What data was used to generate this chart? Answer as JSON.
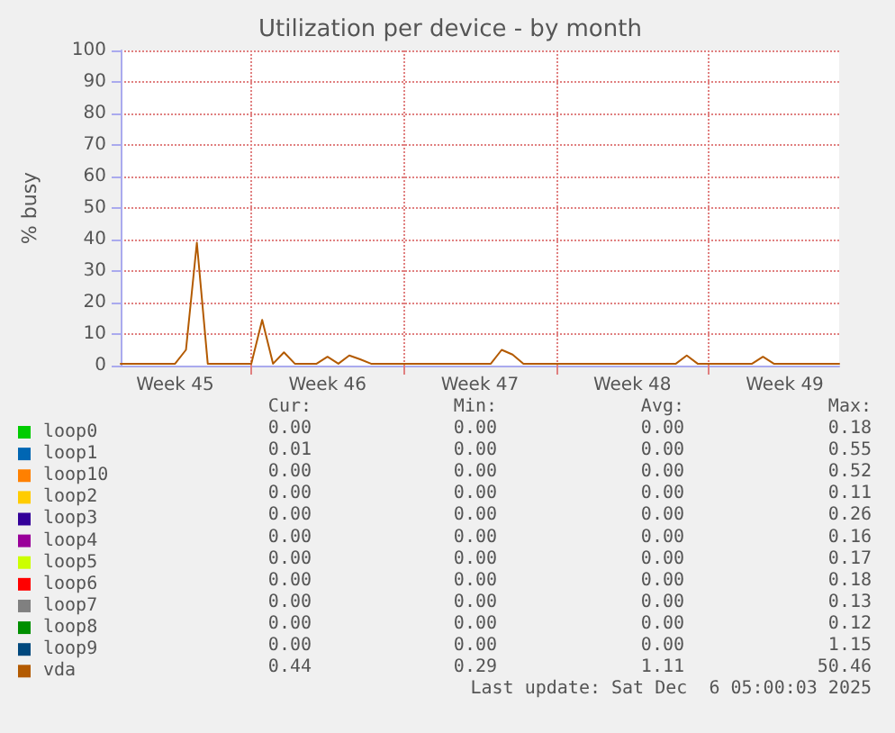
{
  "chart_data": {
    "type": "line",
    "title": "Utilization per device - by month",
    "ylabel": "% busy",
    "categories": [
      null,
      null,
      null,
      null,
      null,
      "Week 45",
      null,
      null,
      null,
      null,
      null,
      null,
      null,
      null,
      null,
      null,
      null,
      null,
      null,
      "Week 46",
      null,
      null,
      null,
      null,
      null,
      null,
      null,
      null,
      null,
      null,
      null,
      null,
      null,
      "Week 47",
      null,
      null,
      null,
      null,
      null,
      null,
      null,
      null,
      null,
      null,
      null,
      null,
      null,
      "Week 48",
      null,
      null,
      null,
      null,
      null,
      null,
      null,
      null,
      null,
      null,
      null,
      null,
      null,
      "Week 49",
      null,
      null,
      null,
      null,
      null
    ],
    "ylim": [
      0,
      100
    ],
    "yticks": [
      0,
      10,
      20,
      30,
      40,
      50,
      60,
      70,
      80,
      90,
      100
    ],
    "grid": true,
    "legend": "bottom left",
    "marker": "none",
    "line_style": "solid",
    "series": [
      {
        "name": "loop0",
        "color": "#00cc00",
        "values": [
          null,
          null,
          null,
          null,
          null,
          null,
          null,
          null,
          null,
          null,
          null,
          null,
          null,
          null,
          null,
          null,
          null,
          null,
          null,
          null,
          null,
          null,
          null,
          null,
          null,
          null,
          null,
          null,
          null,
          null,
          null,
          null,
          null,
          null,
          null,
          null,
          null,
          null,
          null,
          null,
          null,
          null,
          null,
          null,
          null,
          null,
          null,
          null,
          null,
          null,
          null,
          null,
          null,
          null,
          null,
          null,
          null,
          null,
          null,
          null,
          null,
          null,
          null,
          null,
          null,
          null,
          null
        ]
      },
      {
        "name": "loop1",
        "color": "#0066b3",
        "values": [
          null,
          null,
          null,
          null,
          null,
          null,
          null,
          null,
          null,
          null,
          null,
          null,
          null,
          null,
          null,
          null,
          null,
          null,
          null,
          null,
          null,
          null,
          null,
          null,
          null,
          null,
          null,
          null,
          null,
          null,
          null,
          null,
          null,
          null,
          null,
          null,
          null,
          null,
          null,
          null,
          null,
          null,
          null,
          null,
          null,
          null,
          null,
          null,
          null,
          null,
          null,
          null,
          null,
          null,
          null,
          null,
          null,
          null,
          null,
          null,
          null,
          null,
          null,
          null,
          null,
          null,
          null
        ]
      },
      {
        "name": "loop10",
        "color": "#ff8000",
        "values": [
          null,
          null,
          null,
          null,
          null,
          null,
          null,
          null,
          null,
          null,
          null,
          null,
          null,
          null,
          null,
          null,
          null,
          null,
          null,
          null,
          null,
          null,
          null,
          null,
          null,
          null,
          null,
          null,
          null,
          null,
          null,
          null,
          null,
          null,
          null,
          null,
          null,
          null,
          null,
          null,
          null,
          null,
          null,
          null,
          null,
          null,
          null,
          null,
          null,
          null,
          null,
          null,
          null,
          null,
          null,
          null,
          null,
          null,
          null,
          null,
          null,
          null,
          null,
          null,
          null,
          null,
          null
        ]
      },
      {
        "name": "loop2",
        "color": "#ffcc00",
        "values": [
          null,
          null,
          null,
          null,
          null,
          null,
          null,
          null,
          null,
          null,
          null,
          null,
          null,
          null,
          null,
          null,
          null,
          null,
          null,
          null,
          null,
          null,
          null,
          null,
          null,
          null,
          null,
          null,
          null,
          null,
          null,
          null,
          null,
          null,
          null,
          null,
          null,
          null,
          null,
          null,
          null,
          null,
          null,
          null,
          null,
          null,
          null,
          null,
          null,
          null,
          null,
          null,
          null,
          null,
          null,
          null,
          null,
          null,
          null,
          null,
          null,
          null,
          null,
          null,
          null,
          null,
          null
        ]
      },
      {
        "name": "loop3",
        "color": "#330099",
        "values": [
          null,
          null,
          null,
          null,
          null,
          null,
          null,
          null,
          null,
          null,
          null,
          null,
          null,
          null,
          null,
          null,
          null,
          null,
          null,
          null,
          null,
          null,
          null,
          null,
          null,
          null,
          null,
          null,
          null,
          null,
          null,
          null,
          null,
          null,
          null,
          null,
          null,
          null,
          null,
          null,
          null,
          null,
          null,
          null,
          null,
          null,
          null,
          null,
          null,
          null,
          null,
          null,
          null,
          null,
          null,
          null,
          null,
          null,
          null,
          null,
          null,
          null,
          null,
          null,
          null,
          null,
          null
        ]
      },
      {
        "name": "loop4",
        "color": "#990099",
        "values": [
          null,
          null,
          null,
          null,
          null,
          null,
          null,
          null,
          null,
          null,
          null,
          null,
          null,
          null,
          null,
          null,
          null,
          null,
          null,
          null,
          null,
          null,
          null,
          null,
          null,
          null,
          null,
          null,
          null,
          null,
          null,
          null,
          null,
          null,
          null,
          null,
          null,
          null,
          null,
          null,
          null,
          null,
          null,
          null,
          null,
          null,
          null,
          null,
          null,
          null,
          null,
          null,
          null,
          null,
          null,
          null,
          null,
          null,
          null,
          null,
          null,
          null,
          null,
          null,
          null,
          null,
          null
        ]
      },
      {
        "name": "loop5",
        "color": "#ccff00",
        "values": [
          null,
          null,
          null,
          null,
          null,
          null,
          null,
          null,
          null,
          null,
          null,
          null,
          null,
          null,
          null,
          null,
          null,
          null,
          null,
          null,
          null,
          null,
          null,
          null,
          null,
          null,
          null,
          null,
          null,
          null,
          null,
          null,
          null,
          null,
          null,
          null,
          null,
          null,
          null,
          null,
          null,
          null,
          null,
          null,
          null,
          null,
          null,
          null,
          null,
          null,
          null,
          null,
          null,
          null,
          null,
          null,
          null,
          null,
          null,
          null,
          null,
          null,
          null,
          null,
          null,
          null,
          null
        ]
      },
      {
        "name": "loop6",
        "color": "#ff0000",
        "values": [
          null,
          null,
          null,
          null,
          null,
          null,
          null,
          null,
          null,
          null,
          null,
          null,
          null,
          null,
          null,
          null,
          null,
          null,
          null,
          null,
          null,
          null,
          null,
          null,
          null,
          null,
          null,
          null,
          null,
          null,
          null,
          null,
          null,
          null,
          null,
          null,
          null,
          null,
          null,
          null,
          null,
          null,
          null,
          null,
          null,
          null,
          null,
          null,
          null,
          null,
          null,
          null,
          null,
          null,
          null,
          null,
          null,
          null,
          null,
          null,
          null,
          null,
          null,
          null,
          null,
          null,
          null
        ]
      },
      {
        "name": "loop7",
        "color": "#808080",
        "values": [
          null,
          null,
          null,
          null,
          null,
          null,
          null,
          null,
          null,
          null,
          null,
          null,
          null,
          null,
          null,
          null,
          null,
          null,
          null,
          null,
          null,
          null,
          null,
          null,
          null,
          null,
          null,
          null,
          null,
          null,
          null,
          null,
          null,
          null,
          null,
          null,
          null,
          null,
          null,
          null,
          null,
          null,
          null,
          null,
          null,
          null,
          null,
          null,
          null,
          null,
          null,
          null,
          null,
          null,
          null,
          null,
          null,
          null,
          null,
          null,
          null,
          null,
          null,
          null,
          null,
          null,
          null
        ]
      },
      {
        "name": "loop8",
        "color": "#008f00",
        "values": [
          null,
          null,
          null,
          null,
          null,
          null,
          null,
          null,
          null,
          null,
          null,
          null,
          null,
          null,
          null,
          null,
          null,
          null,
          null,
          null,
          null,
          null,
          null,
          null,
          null,
          null,
          null,
          null,
          null,
          null,
          null,
          null,
          null,
          null,
          null,
          null,
          null,
          null,
          null,
          null,
          null,
          null,
          null,
          null,
          null,
          null,
          null,
          null,
          null,
          null,
          null,
          null,
          null,
          null,
          null,
          null,
          null,
          null,
          null,
          null,
          null,
          null,
          null,
          null,
          null,
          null,
          null
        ]
      },
      {
        "name": "loop9",
        "color": "#00487d",
        "values": [
          null,
          null,
          null,
          null,
          null,
          null,
          null,
          null,
          null,
          null,
          null,
          null,
          null,
          null,
          null,
          null,
          null,
          null,
          null,
          null,
          null,
          null,
          null,
          null,
          null,
          null,
          null,
          null,
          null,
          null,
          null,
          null,
          null,
          null,
          null,
          null,
          null,
          null,
          null,
          null,
          null,
          null,
          null,
          null,
          null,
          null,
          null,
          null,
          null,
          null,
          null,
          null,
          null,
          null,
          null,
          null,
          null,
          null,
          null,
          null,
          null,
          null,
          null,
          null,
          null,
          null,
          null
        ]
      },
      {
        "name": "vda",
        "color": "#b35a00",
        "values": [
          0.6,
          0.6,
          0.6,
          0.6,
          0.6,
          0.6,
          5,
          39,
          0.6,
          0.6,
          0.6,
          0.6,
          0.6,
          14.5,
          0.6,
          4.2,
          0.6,
          0.6,
          0.6,
          2.8,
          0.6,
          3.2,
          2,
          0.6,
          0.6,
          0.6,
          0.6,
          0.6,
          0.6,
          0.6,
          0.6,
          0.6,
          0.6,
          0.6,
          0.6,
          5,
          3.5,
          0.6,
          0.6,
          0.6,
          0.6,
          0.6,
          0.6,
          0.6,
          0.6,
          0.6,
          0.6,
          0.6,
          0.6,
          0.6,
          0.6,
          0.6,
          3.2,
          0.6,
          0.6,
          0.6,
          0.6,
          0.6,
          0.6,
          2.8,
          0.6,
          0.6,
          0.6,
          0.6,
          0.6,
          0.6,
          0.6
        ]
      }
    ],
    "annotations": [
      "Cur:",
      "Min:",
      "Avg:",
      "Max:",
      "0.00",
      "0.00",
      "0.00",
      "0.18",
      "0.01",
      "0.00",
      "0.00",
      "0.55",
      "0.00",
      "0.00",
      "0.00",
      "0.52",
      "0.00",
      "0.00",
      "0.00",
      "0.11",
      "0.00",
      "0.00",
      "0.00",
      "0.26",
      "0.00",
      "0.00",
      "0.00",
      "0.16",
      "0.00",
      "0.00",
      "0.00",
      "0.17",
      "0.00",
      "0.00",
      "0.00",
      "0.18",
      "0.00",
      "0.00",
      "0.00",
      "0.13",
      "0.00",
      "0.00",
      "0.00",
      "0.12",
      "0.00",
      "0.00",
      "0.00",
      "1.15",
      "0.44",
      "0.29",
      "1.11",
      "50.46",
      "Last update: Sat Dec  6 05:00:03 2025"
    ]
  }
}
